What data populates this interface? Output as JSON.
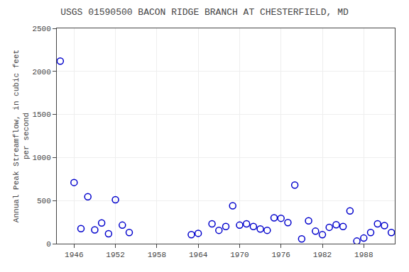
{
  "chart_data": {
    "type": "scatter",
    "title": "USGS 01590500 BACON RIDGE BRANCH AT CHESTERFIELD, MD",
    "ylabel": "Annual Peak Streamflow, in cubic feet\nper second",
    "x": [
      1944,
      1946,
      1947,
      1948,
      1949,
      1950,
      1951,
      1952,
      1953,
      1954,
      1963,
      1964,
      1966,
      1967,
      1968,
      1969,
      1970,
      1971,
      1972,
      1973,
      1974,
      1975,
      1976,
      1977,
      1978,
      1979,
      1980,
      1981,
      1982,
      1983,
      1984,
      1985,
      1986,
      1987,
      1988,
      1989,
      1990,
      1991,
      1992
    ],
    "values": [
      2120,
      710,
      175,
      545,
      160,
      240,
      115,
      510,
      215,
      130,
      105,
      120,
      230,
      155,
      200,
      440,
      215,
      230,
      200,
      170,
      155,
      300,
      295,
      245,
      680,
      55,
      265,
      145,
      105,
      190,
      220,
      200,
      380,
      30,
      65,
      130,
      230,
      210,
      130
    ],
    "xlim": [
      1943.5,
      1992.5
    ],
    "ylim": [
      0,
      2500
    ],
    "xticks": [
      1946,
      1952,
      1958,
      1964,
      1970,
      1976,
      1982,
      1988
    ],
    "yticks": [
      0,
      500,
      1000,
      1500,
      2000,
      2500
    ],
    "color": "#0000cc",
    "marker": "circle-open",
    "grid": true
  }
}
